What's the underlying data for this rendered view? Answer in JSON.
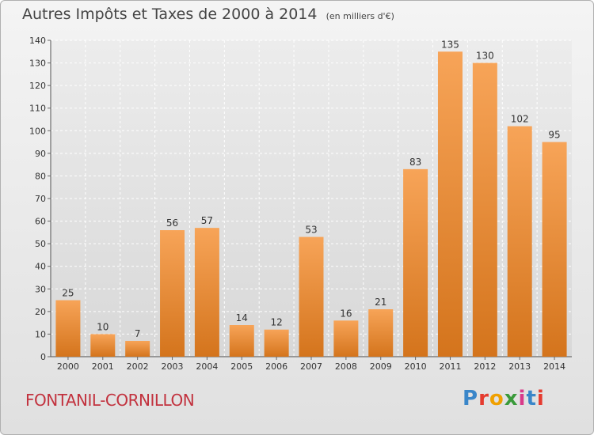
{
  "title": "Autres Impôts et Taxes de 2000 à 2014",
  "unit_note": "(en milliers d'€)",
  "place_name": "FONTANIL-CORNILLON",
  "logo": {
    "text": "Proxiti",
    "letter_colors": [
      "#3a86c9",
      "#e53b2f",
      "#f0a000",
      "#3a9a3a",
      "#d93a8a",
      "#3a86c9",
      "#e53b2f"
    ]
  },
  "colors": {
    "bar_top": "#f7a458",
    "bar_bottom": "#d4741c",
    "label_text": "#333333",
    "title_text": "#454545",
    "place_text": "#c2323e"
  },
  "chart_data": {
    "type": "bar",
    "categories": [
      "2000",
      "2001",
      "2002",
      "2003",
      "2004",
      "2005",
      "2006",
      "2007",
      "2008",
      "2009",
      "2010",
      "2011",
      "2012",
      "2013",
      "2014"
    ],
    "values": [
      25,
      10,
      7,
      56,
      57,
      14,
      12,
      53,
      16,
      21,
      83,
      135,
      130,
      102,
      95
    ],
    "ylim": [
      0,
      140
    ],
    "yticks": [
      0,
      10,
      20,
      30,
      40,
      50,
      60,
      70,
      80,
      90,
      100,
      110,
      120,
      130,
      140
    ],
    "grid": true,
    "data_labels": true
  }
}
